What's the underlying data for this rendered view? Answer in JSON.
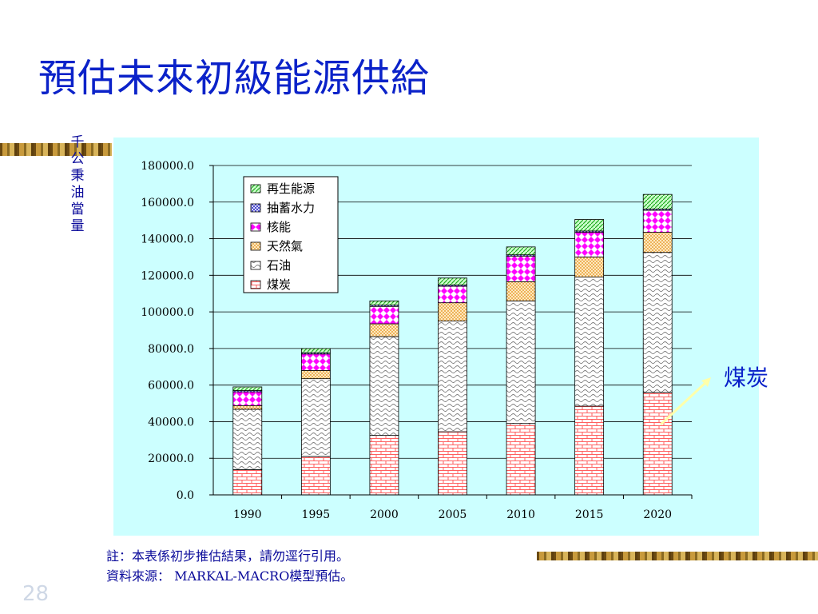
{
  "slide": {
    "title": "預估未來初級能源供給",
    "unit_label": "千公秉油當量",
    "callout": "煤炭",
    "notes": [
      "註：本表係初步推估結果，請勿逕行引用。",
      "資料來源： MARKAL-MACRO模型預估。"
    ],
    "page_number": "28"
  },
  "chart_data": {
    "type": "bar",
    "stacked": true,
    "title": "",
    "xlabel": "",
    "ylabel": "千公秉油當量",
    "categories": [
      "1990",
      "1995",
      "2000",
      "2005",
      "2010",
      "2015",
      "2020"
    ],
    "ylim": [
      0,
      180000
    ],
    "yticks": [
      0,
      20000,
      40000,
      60000,
      80000,
      100000,
      120000,
      140000,
      160000,
      180000
    ],
    "ytick_labels": [
      "0.0",
      "20000.0",
      "40000.0",
      "60000.0",
      "80000.0",
      "100000.0",
      "120000.0",
      "140000.0",
      "160000.0",
      "180000.0"
    ],
    "grid": true,
    "legend_position": "top-left",
    "series": [
      {
        "name": "煤炭",
        "color": "#ff5f5f",
        "pattern": "brick",
        "values": [
          13800,
          21000,
          32500,
          34500,
          39000,
          48500,
          56000
        ]
      },
      {
        "name": "石油",
        "color": "#808080",
        "pattern": "wave",
        "values": [
          33000,
          42500,
          54000,
          60500,
          67000,
          70500,
          76500
        ]
      },
      {
        "name": "天然氣",
        "color": "#f0a030",
        "pattern": "dots",
        "values": [
          2000,
          4500,
          7000,
          10000,
          10500,
          11000,
          11000
        ]
      },
      {
        "name": "核能",
        "color": "#ff00ff",
        "pattern": "diamond",
        "values": [
          7500,
          9000,
          9500,
          9000,
          14000,
          13500,
          12000
        ]
      },
      {
        "name": "抽蓄水力",
        "color": "#3333cc",
        "pattern": "cross",
        "values": [
          700,
          700,
          700,
          700,
          700,
          700,
          700
        ]
      },
      {
        "name": "再生能源",
        "color": "#33bb33",
        "pattern": "diag",
        "values": [
          2000,
          2300,
          2300,
          3800,
          4300,
          6300,
          8000
        ]
      }
    ]
  }
}
